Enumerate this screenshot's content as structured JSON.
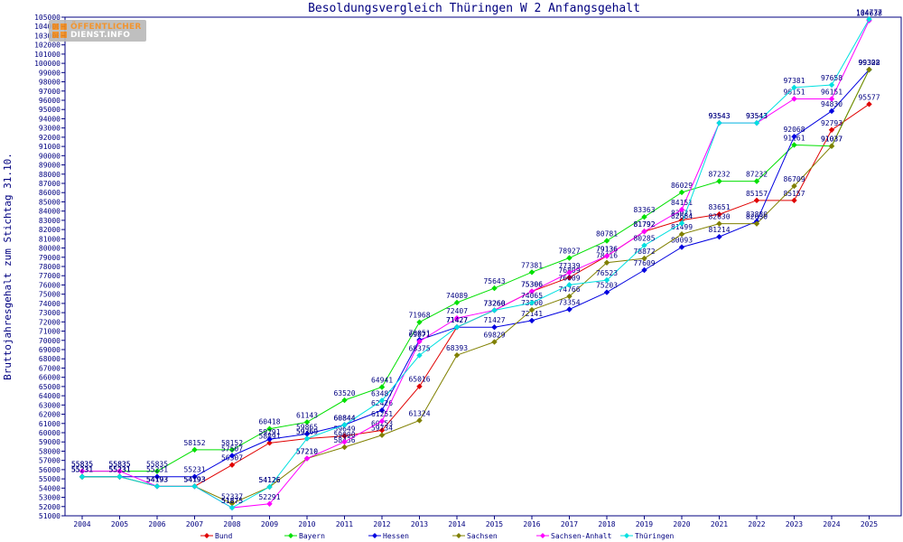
{
  "chart_data": {
    "type": "line",
    "title": "Besoldungsvergleich Thüringen W 2 Anfangsgehalt",
    "ylabel": "Bruttojahresgehalt zum Stichtag 31.10.",
    "xlabel": "",
    "ylim": [
      51000,
      105000
    ],
    "ytick_step": 1000,
    "grid": false,
    "legend_position": "bottom",
    "x": [
      "2004",
      "2005",
      "2006",
      "2007",
      "2008",
      "2009",
      "2010",
      "2011",
      "2012",
      "2013",
      "2014",
      "2015",
      "2016",
      "2017",
      "2018",
      "2019",
      "2020",
      "2021",
      "2022",
      "2023",
      "2024",
      "2025"
    ],
    "series": [
      {
        "name": "Bund",
        "color": "#e00000",
        "values": [
          55231,
          55231,
          54193,
          54193,
          56507,
          58891,
          59369,
          59649,
          60253,
          65016,
          71427,
          73260,
          75306,
          76809,
          79136,
          81792,
          83021,
          83651,
          85157,
          85157,
          92793,
          95577
        ]
      },
      {
        "name": "Bayern",
        "color": "#00e000",
        "values": [
          55835,
          55835,
          55835,
          58152,
          58152,
          60418,
          61143,
          63520,
          64941,
          71968,
          74089,
          75643,
          77381,
          78927,
          80781,
          83363,
          86029,
          87232,
          87232,
          91161,
          91037,
          99308
        ]
      },
      {
        "name": "Hessen",
        "color": "#0000e0",
        "values": [
          55231,
          55231,
          55231,
          55231,
          57507,
          59291,
          59865,
          60844,
          62426,
          70051,
          71427,
          71427,
          72141,
          73354,
          75203,
          77609,
          80093,
          81214,
          82880,
          92068,
          94830,
          99322
        ]
      },
      {
        "name": "Sachsen",
        "color": "#808000",
        "values": [
          55231,
          55231,
          54193,
          54193,
          52337,
          54126,
          57210,
          58436,
          59734,
          61324,
          68393,
          69829,
          73300,
          74766,
          78416,
          78872,
          81499,
          82630,
          82630,
          86709,
          91037,
          99322
        ]
      },
      {
        "name": "Sachsen-Anhalt",
        "color": "#ff00ff",
        "values": [
          55835,
          55835,
          54193,
          54193,
          51875,
          52291,
          57210,
          59000,
          61251,
          69871,
          72407,
          73260,
          75306,
          77339,
          79136,
          81792,
          84151,
          93543,
          93543,
          96151,
          96151,
          104638
        ]
      },
      {
        "name": "Thüringen",
        "color": "#00e0e0",
        "values": [
          55231,
          55231,
          54193,
          54193,
          51875,
          54126,
          59369,
          60844,
          63487,
          68375,
          71427,
          73260,
          74065,
          76009,
          76523,
          80285,
          82684,
          93543,
          93543,
          97381,
          97658,
          104777
        ]
      }
    ]
  },
  "logo": {
    "line1": "ÖFFENTLICHER",
    "line2": "DIENST.INFO"
  }
}
